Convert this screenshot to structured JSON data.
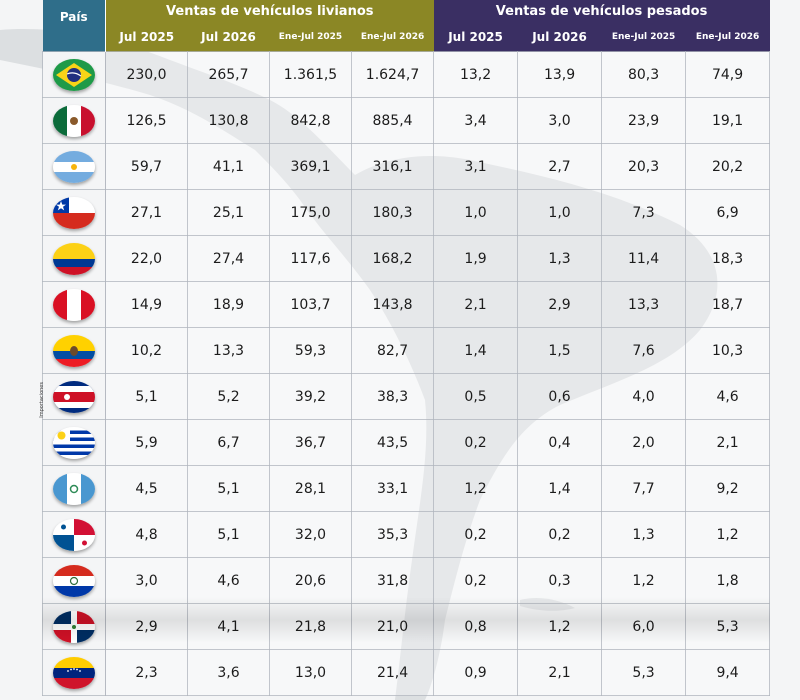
{
  "chart_data": {
    "type": "table",
    "country_header": "País",
    "groups": [
      {
        "label": "Ventas de vehículos livianos",
        "color": "#8b8725"
      },
      {
        "label": "Ventas de vehículos pesados",
        "color": "#3a2f63"
      }
    ],
    "columns": [
      "Jul 2025",
      "Jul 2026",
      "Ene-Jul 2025",
      "Ene-Jul 2026",
      "Jul 2025",
      "Jul 2026",
      "Ene-Jul 2025",
      "Ene-Jul 2026"
    ],
    "side_note": "Importaciones",
    "rows": [
      {
        "flag": "brazil-flag",
        "values": [
          "230,0",
          "265,7",
          "1.361,5",
          "1.624,7",
          "13,2",
          "13,9",
          "80,3",
          "74,9"
        ]
      },
      {
        "flag": "mexico-flag",
        "values": [
          "126,5",
          "130,8",
          "842,8",
          "885,4",
          "3,4",
          "3,0",
          "23,9",
          "19,1"
        ]
      },
      {
        "flag": "argentina-flag",
        "values": [
          "59,7",
          "41,1",
          "369,1",
          "316,1",
          "3,1",
          "2,7",
          "20,3",
          "20,2"
        ]
      },
      {
        "flag": "chile-flag",
        "values": [
          "27,1",
          "25,1",
          "175,0",
          "180,3",
          "1,0",
          "1,0",
          "7,3",
          "6,9"
        ]
      },
      {
        "flag": "colombia-flag",
        "values": [
          "22,0",
          "27,4",
          "117,6",
          "168,2",
          "1,9",
          "1,3",
          "11,4",
          "18,3"
        ]
      },
      {
        "flag": "peru-flag",
        "values": [
          "14,9",
          "18,9",
          "103,7",
          "143,8",
          "2,1",
          "2,9",
          "13,3",
          "18,7"
        ]
      },
      {
        "flag": "ecuador-flag",
        "values": [
          "10,2",
          "13,3",
          "59,3",
          "82,7",
          "1,4",
          "1,5",
          "7,6",
          "10,3"
        ]
      },
      {
        "flag": "costa-rica-flag",
        "values": [
          "5,1",
          "5,2",
          "39,2",
          "38,3",
          "0,5",
          "0,6",
          "4,0",
          "4,6"
        ]
      },
      {
        "flag": "uruguay-flag",
        "values": [
          "5,9",
          "6,7",
          "36,7",
          "43,5",
          "0,2",
          "0,4",
          "2,0",
          "2,1"
        ]
      },
      {
        "flag": "guatemala-flag",
        "values": [
          "4,5",
          "5,1",
          "28,1",
          "33,1",
          "1,2",
          "1,4",
          "7,7",
          "9,2"
        ]
      },
      {
        "flag": "panama-flag",
        "values": [
          "4,8",
          "5,1",
          "32,0",
          "35,3",
          "0,2",
          "0,2",
          "1,3",
          "1,2"
        ]
      },
      {
        "flag": "paraguay-flag",
        "values": [
          "3,0",
          "4,6",
          "20,6",
          "31,8",
          "0,2",
          "0,3",
          "1,2",
          "1,8"
        ]
      },
      {
        "flag": "dominican-republic-flag",
        "values": [
          "2,9",
          "4,1",
          "21,8",
          "21,0",
          "0,8",
          "1,2",
          "6,0",
          "5,3"
        ]
      },
      {
        "flag": "venezuela-flag",
        "values": [
          "2,3",
          "3,6",
          "13,0",
          "21,4",
          "0,9",
          "2,1",
          "5,3",
          "9,4"
        ]
      }
    ]
  }
}
